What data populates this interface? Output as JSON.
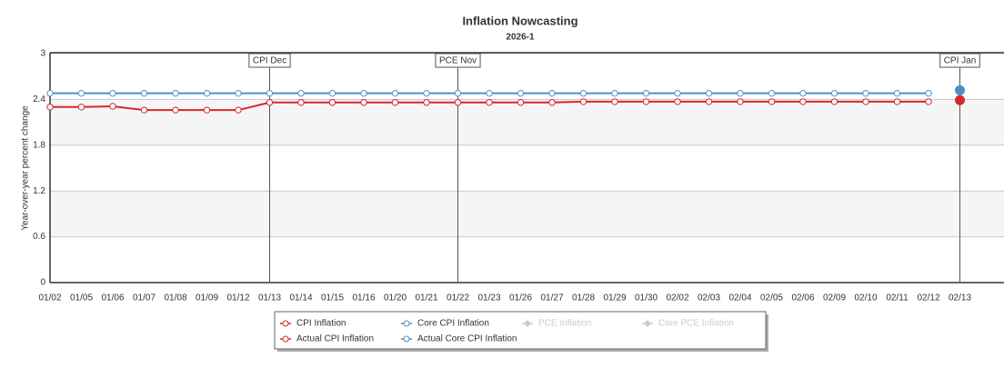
{
  "chart_data": {
    "type": "line",
    "title": "Inflation Nowcasting",
    "subtitle": "2026-1",
    "y_label": "Year-over-year percent change",
    "categories": [
      "01/02",
      "01/05",
      "01/06",
      "01/07",
      "01/08",
      "01/09",
      "01/12",
      "01/13",
      "01/14",
      "01/15",
      "01/16",
      "01/20",
      "01/21",
      "01/22",
      "01/23",
      "01/26",
      "01/27",
      "01/28",
      "01/29",
      "01/30",
      "02/02",
      "02/03",
      "02/04",
      "02/05",
      "02/06",
      "02/09",
      "02/10",
      "02/11",
      "02/12",
      "02/13"
    ],
    "ylim": [
      0,
      3
    ],
    "yticks": [
      0,
      0.6,
      1.2,
      1.8,
      2.4,
      3
    ],
    "grid": true,
    "annotations": [
      {
        "label": "CPI Dec",
        "x": "01/13"
      },
      {
        "label": "PCE Nov",
        "x": "01/22"
      },
      {
        "label": "CPI Jan",
        "x": "02/13"
      }
    ],
    "series": [
      {
        "name": "CPI Inflation",
        "color": "#d9262a",
        "marker": "circle",
        "visible": true,
        "values": [
          2.3,
          2.3,
          2.31,
          2.26,
          2.26,
          2.26,
          2.26,
          2.36,
          2.36,
          2.36,
          2.36,
          2.36,
          2.36,
          2.36,
          2.36,
          2.36,
          2.36,
          2.37,
          2.37,
          2.37,
          2.37,
          2.37,
          2.37,
          2.37,
          2.37,
          2.37,
          2.37,
          2.37,
          2.37,
          null
        ]
      },
      {
        "name": "Core CPI Inflation",
        "color": "#4a90c8",
        "marker": "circle",
        "visible": true,
        "values": [
          2.48,
          2.48,
          2.48,
          2.48,
          2.48,
          2.48,
          2.48,
          2.48,
          2.48,
          2.48,
          2.48,
          2.48,
          2.48,
          2.48,
          2.48,
          2.48,
          2.48,
          2.48,
          2.48,
          2.48,
          2.48,
          2.48,
          2.48,
          2.48,
          2.48,
          2.48,
          2.48,
          2.48,
          2.48,
          null
        ]
      },
      {
        "name": "PCE Inflation",
        "color": "#cccccc",
        "marker": "diamond",
        "visible": false
      },
      {
        "name": "Core PCE Inflation",
        "color": "#cccccc",
        "marker": "diamond",
        "visible": false
      },
      {
        "name": "Actual CPI Inflation",
        "color": "#d9262a",
        "marker": "dot",
        "visible": true,
        "values": [
          null,
          null,
          null,
          null,
          null,
          null,
          null,
          null,
          null,
          null,
          null,
          null,
          null,
          null,
          null,
          null,
          null,
          null,
          null,
          null,
          null,
          null,
          null,
          null,
          null,
          null,
          null,
          null,
          null,
          2.39
        ]
      },
      {
        "name": "Actual Core CPI Inflation",
        "color": "#4a90c8",
        "marker": "dot",
        "visible": true,
        "values": [
          null,
          null,
          null,
          null,
          null,
          null,
          null,
          null,
          null,
          null,
          null,
          null,
          null,
          null,
          null,
          null,
          null,
          null,
          null,
          null,
          null,
          null,
          null,
          null,
          null,
          null,
          null,
          null,
          null,
          2.52
        ]
      }
    ]
  }
}
